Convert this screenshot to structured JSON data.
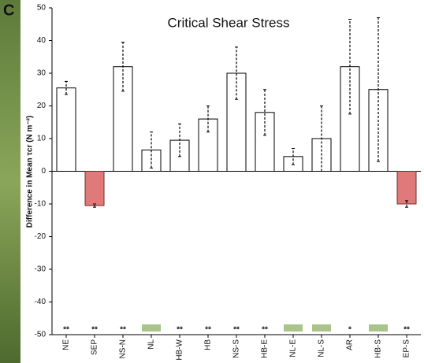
{
  "panel_label": "C",
  "chart_data": {
    "type": "bar",
    "title": "Critical Shear Stress",
    "y_label": "Difference in Mean τcr (N m⁻²)",
    "categories": [
      "NE",
      "SEP",
      "NS-N",
      "NL",
      "HB-W",
      "HB",
      "NS-S",
      "HB-E",
      "NL-E",
      "NL-S",
      "AR",
      "HB-S",
      "EP-S"
    ],
    "values": [
      25.5,
      -10.5,
      32,
      6.5,
      9.5,
      16,
      30,
      18,
      4.5,
      10,
      32,
      25,
      -10
    ],
    "errors": [
      2,
      0.5,
      7.5,
      5.5,
      5,
      4,
      8,
      7,
      2.5,
      10,
      14.5,
      22,
      1
    ],
    "significance": [
      "**",
      "**",
      "**",
      null,
      "**",
      "**",
      "**",
      "**",
      null,
      null,
      "*",
      null,
      "**"
    ],
    "positive_color": "#ffffff",
    "negative_color": "#e07a7a",
    "ylim": [
      -50,
      50
    ],
    "yticks": [
      -50,
      -40,
      -30,
      -20,
      -10,
      0,
      10,
      20,
      30,
      40,
      50
    ]
  }
}
